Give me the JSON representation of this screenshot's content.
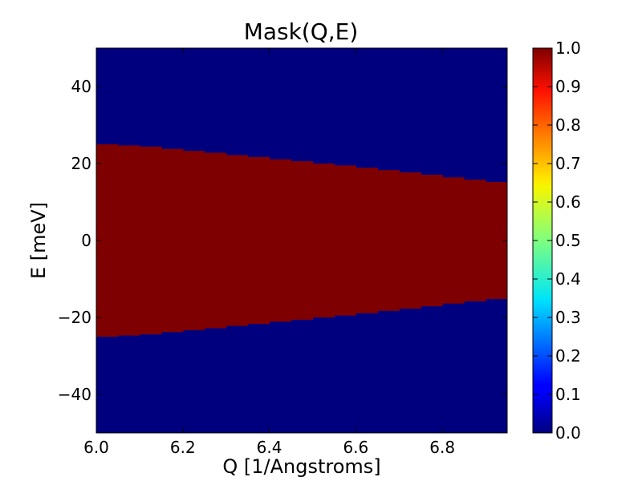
{
  "chart_data": {
    "type": "heatmap",
    "title": "Mask(Q,E)",
    "xlabel": "Q [1/Angstroms]",
    "ylabel": "E [meV]",
    "xlim": [
      6.0,
      6.95
    ],
    "ylim": [
      -50,
      50
    ],
    "xticks": [
      {
        "value": 6.0,
        "label": "6.0"
      },
      {
        "value": 6.2,
        "label": "6.2"
      },
      {
        "value": 6.4,
        "label": "6.4"
      },
      {
        "value": 6.6,
        "label": "6.6"
      },
      {
        "value": 6.8,
        "label": "6.8"
      }
    ],
    "yticks": [
      {
        "value": 40,
        "label": "40"
      },
      {
        "value": 20,
        "label": "20"
      },
      {
        "value": 0,
        "label": "0"
      },
      {
        "value": -20,
        "label": "−20"
      },
      {
        "value": -40,
        "label": "−40"
      }
    ],
    "mask_value_inside": 1.0,
    "mask_value_outside": 0.0,
    "q_bins": [
      6.0,
      6.05,
      6.1,
      6.15,
      6.2,
      6.25,
      6.3,
      6.35,
      6.4,
      6.45,
      6.5,
      6.55,
      6.6,
      6.65,
      6.7,
      6.75,
      6.8,
      6.85,
      6.9,
      6.95
    ],
    "e_upper": [
      25.0,
      24.7,
      24.4,
      23.8,
      23.3,
      22.8,
      22.2,
      21.7,
      21.1,
      20.6,
      20.0,
      19.5,
      18.9,
      18.3,
      17.7,
      17.1,
      16.4,
      15.8,
      15.2
    ],
    "e_lower": [
      -25.0,
      -24.7,
      -24.4,
      -23.8,
      -23.3,
      -22.8,
      -22.2,
      -21.7,
      -21.1,
      -20.6,
      -20.0,
      -19.5,
      -18.9,
      -18.3,
      -17.7,
      -17.1,
      -16.4,
      -15.8,
      -15.2
    ],
    "colors": {
      "low": "#00007f",
      "high": "#7f0000"
    },
    "colorbar": {
      "range": [
        0.0,
        1.0
      ],
      "colormap": "jet",
      "ticks": [
        "0.0",
        "0.1",
        "0.2",
        "0.3",
        "0.4",
        "0.5",
        "0.6",
        "0.7",
        "0.8",
        "0.9",
        "1.0"
      ]
    }
  }
}
